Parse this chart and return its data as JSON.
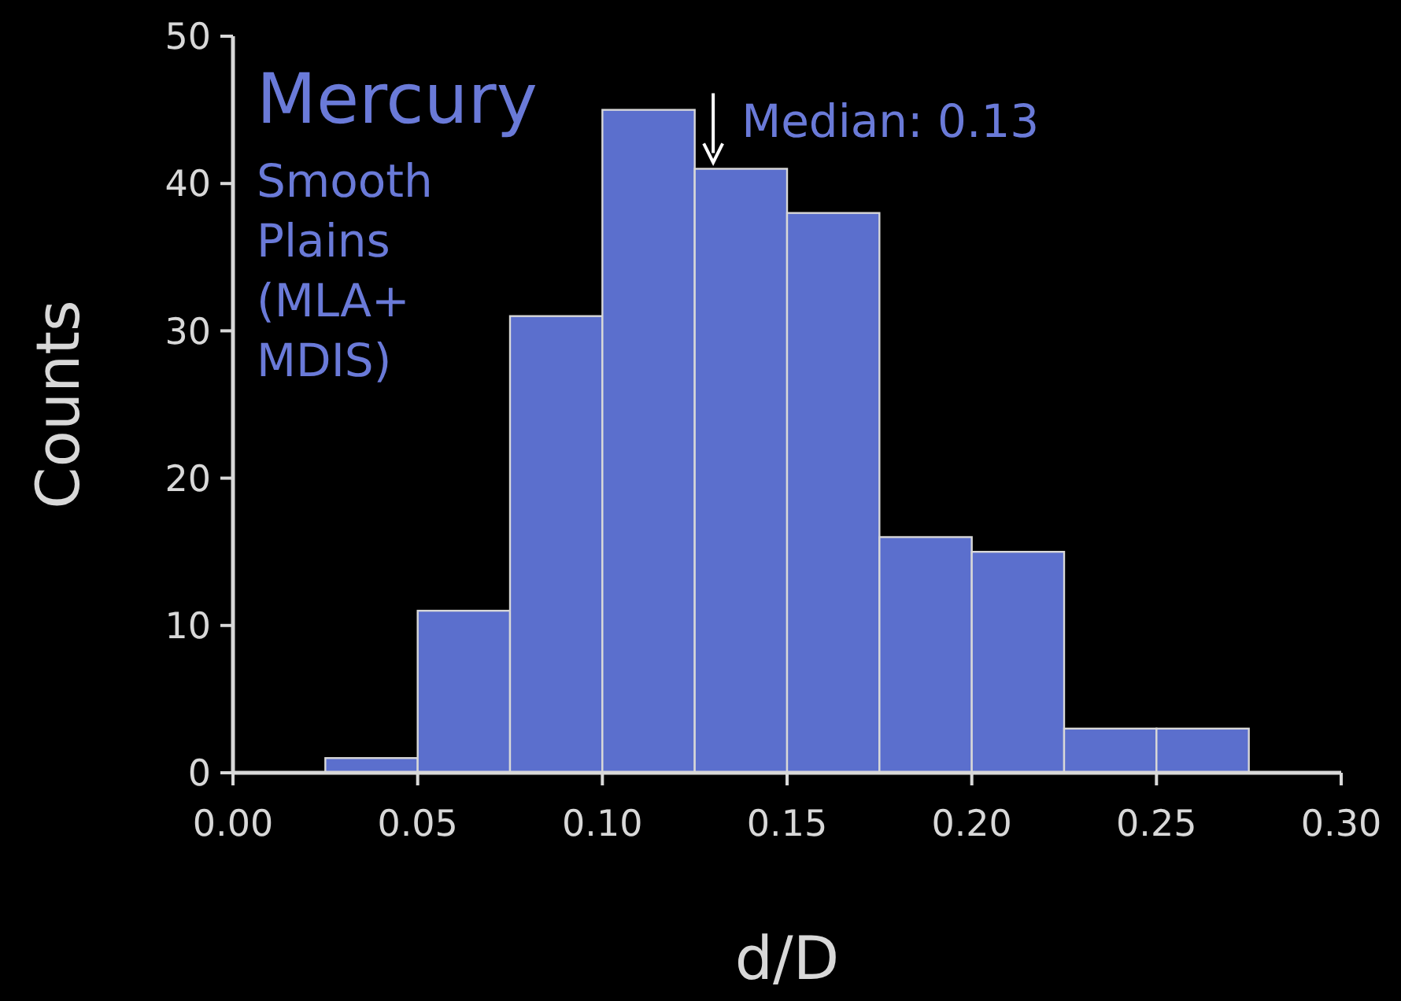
{
  "chart_data": {
    "type": "histogram",
    "title": "Mercury",
    "subtitle": "Smooth Plains (MLA+ MDIS)",
    "xlabel": "d/D",
    "ylabel": "Counts",
    "bins": [
      0.025,
      0.05,
      0.075,
      0.1,
      0.125,
      0.15,
      0.175,
      0.2,
      0.225,
      0.25,
      0.275
    ],
    "values": [
      1,
      11,
      31,
      45,
      41,
      38,
      16,
      15,
      3,
      3
    ],
    "color": "#5b6fcd",
    "xlim": [
      0,
      0.3
    ],
    "xticks": [
      {
        "value": 0,
        "label": "0.00"
      },
      {
        "value": 0.05,
        "label": "0.05"
      },
      {
        "value": 0.1,
        "label": "0.10"
      },
      {
        "value": 0.15,
        "label": "0.15"
      },
      {
        "value": 0.2,
        "label": "0.20"
      },
      {
        "value": 0.25,
        "label": "0.25"
      },
      {
        "value": 0.3,
        "label": "0.30"
      }
    ],
    "ylim": [
      0,
      50
    ],
    "yticks": [
      0,
      10,
      20,
      30,
      40,
      50
    ],
    "annotations": [
      {
        "text": "Median: 0.13",
        "x": 0.13,
        "y": 41
      }
    ],
    "grid": false
  }
}
